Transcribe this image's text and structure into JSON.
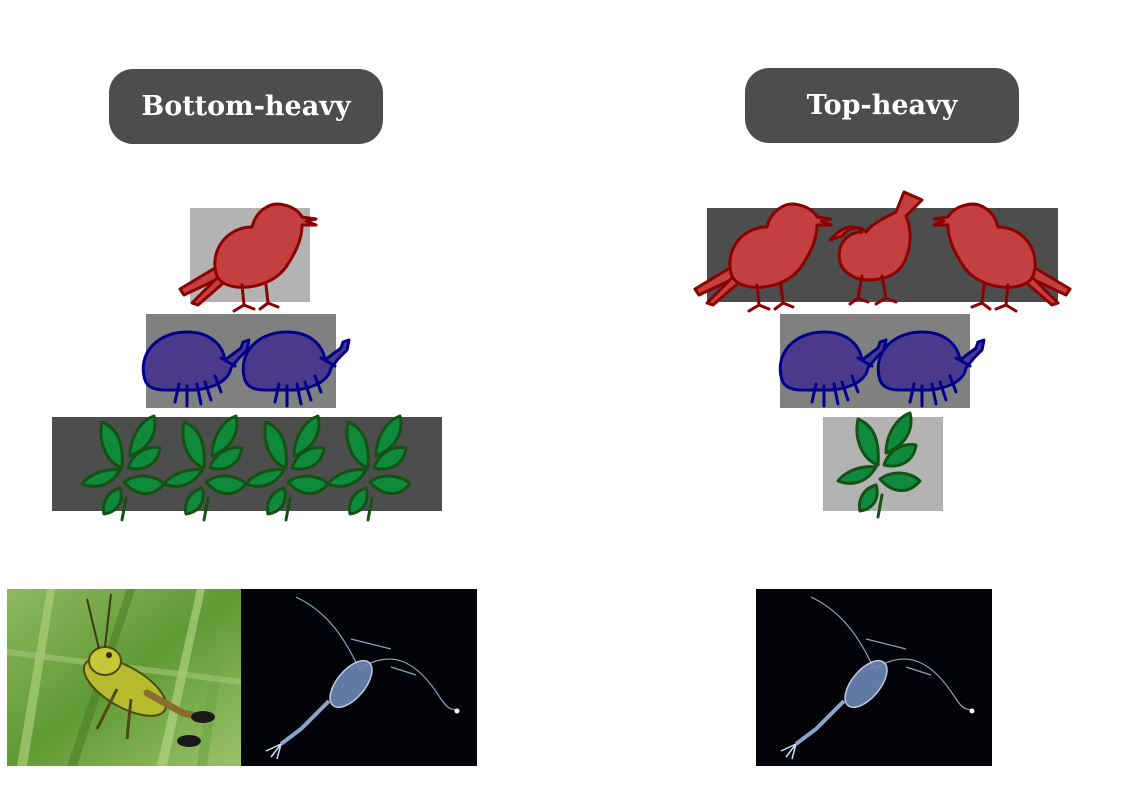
{
  "panels": {
    "left": {
      "title": "Bottom-heavy",
      "levels": {
        "top": {
          "organism": "bird-icon",
          "count": 1
        },
        "middle": {
          "organism": "beetle-icon",
          "count": 2
        },
        "bottom": {
          "organism": "leaf-icon",
          "count": 4
        }
      },
      "photos": [
        "grasshopper-photo",
        "zooplankton-photo"
      ]
    },
    "right": {
      "title": "Top-heavy",
      "levels": {
        "top": {
          "organism": "bird-icon",
          "count": 3
        },
        "middle": {
          "organism": "beetle-icon",
          "count": 2
        },
        "bottom": {
          "organism": "leaf-icon",
          "count": 1
        }
      },
      "photos": [
        "zooplankton-photo"
      ]
    }
  },
  "colors": {
    "dark_box": "#4d4d4d",
    "mid_box": "#808080",
    "light_box": "#b3b3b3",
    "bird_fill": "#c44040",
    "bird_stroke": "#8b0000",
    "beetle_fill": "#4b3a8c",
    "beetle_stroke": "#00008b",
    "leaf_fill": "#0f8a3c",
    "leaf_stroke": "#145214"
  }
}
